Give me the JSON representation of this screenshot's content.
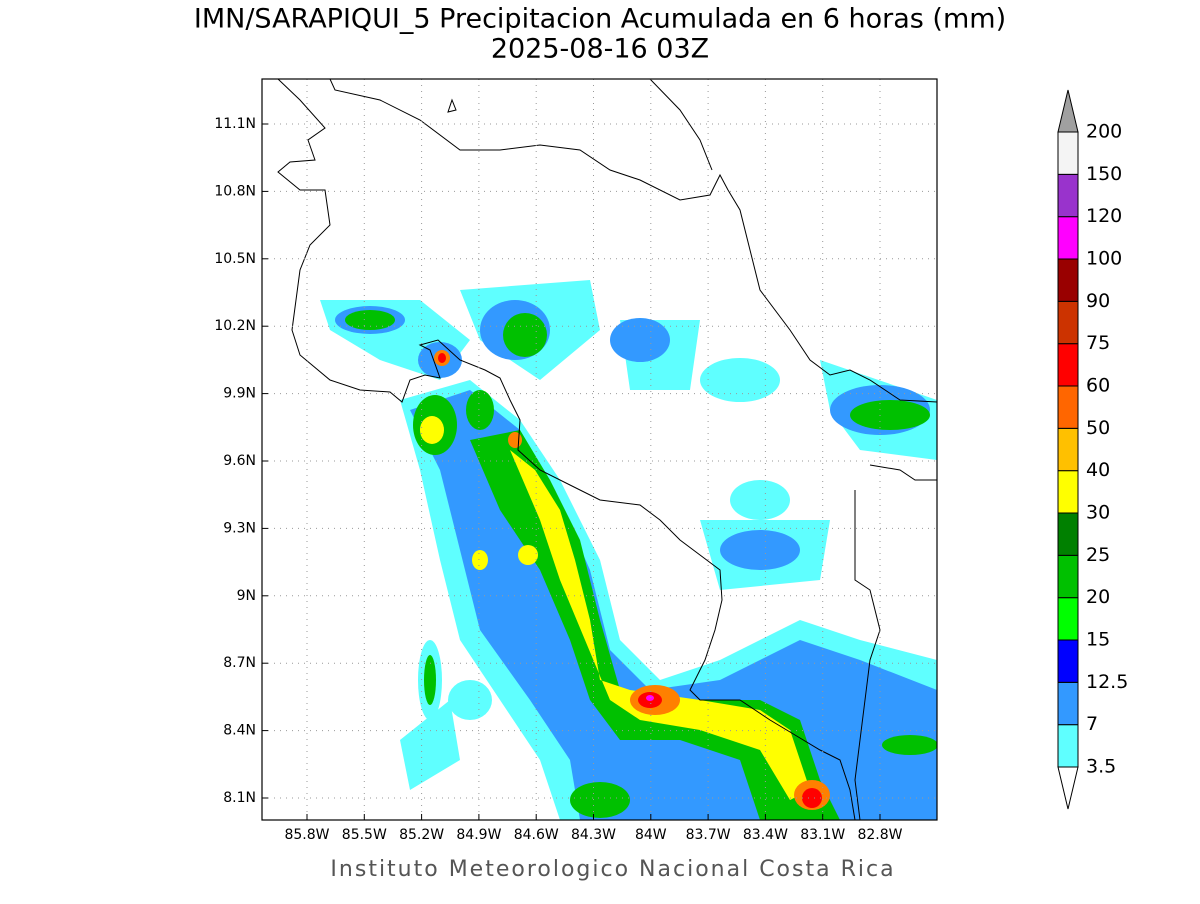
{
  "title": "IMN/SARAPIQUI_5 Precipitacion Acumulada en 6 horas (mm)",
  "subtitle": "2025-08-16 03Z",
  "map": {
    "lat_labels": [
      "11.1N",
      "10.8N",
      "10.5N",
      "10.2N",
      "9.9N",
      "9.6N",
      "9.3N",
      "9N",
      "8.7N",
      "8.4N",
      "8.1N"
    ],
    "lon_labels": [
      "85.8W",
      "85.5W",
      "85.2W",
      "84.9W",
      "84.6W",
      "84.3W",
      "84W",
      "83.7W",
      "83.4W",
      "83.1W",
      "82.8W"
    ]
  },
  "colorbar": {
    "levels": [
      "3.5",
      "7",
      "12.5",
      "15",
      "20",
      "25",
      "30",
      "40",
      "50",
      "60",
      "75",
      "90",
      "100",
      "120",
      "150",
      "200"
    ],
    "colors": [
      "#5fffff",
      "#3399ff",
      "#0000ff",
      "#00ff00",
      "#00c000",
      "#008000",
      "#ffff00",
      "#ffc000",
      "#ff6600",
      "#ff0000",
      "#cc3300",
      "#990000",
      "#ff00ff",
      "#9933cc",
      "#f4f4f4"
    ],
    "under_color": "#ffffff",
    "over_color": "#a0a0a0"
  },
  "footer": "Instituto Meteorologico Nacional Costa Rica"
}
